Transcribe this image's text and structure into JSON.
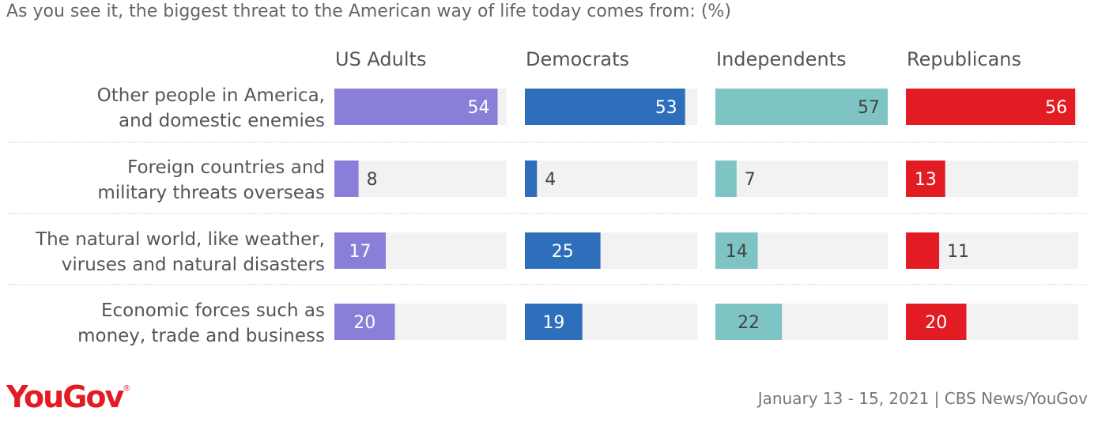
{
  "chart_title": "As you see it, the biggest threat to the American way of life today comes from: (%)",
  "chart_data": {
    "type": "bar",
    "title": "As you see it, the biggest threat to the American way of life today comes from: (%)",
    "categories": [
      [
        "Other people in America,",
        "and domestic enemies"
      ],
      [
        "Foreign countries and",
        "military threats overseas"
      ],
      [
        "The natural world, like weather,",
        "viruses and natural disasters"
      ],
      [
        "Economic forces such as",
        "money, trade and business"
      ]
    ],
    "series": [
      {
        "name": "US Adults",
        "color": "#8a7fd8",
        "values": [
          54,
          8,
          17,
          20
        ]
      },
      {
        "name": "Democrats",
        "color": "#2e6fbc",
        "values": [
          53,
          4,
          25,
          19
        ]
      },
      {
        "name": "Independents",
        "color": "#7ec4c4",
        "values": [
          57,
          7,
          14,
          22
        ]
      },
      {
        "name": "Republicans",
        "color": "#e31b23",
        "values": [
          56,
          13,
          11,
          20
        ]
      }
    ],
    "ylim": [
      0,
      57
    ],
    "grid": false
  },
  "logo": "YouGov",
  "source": "January 13 - 15, 2021 | CBS News/YouGov"
}
